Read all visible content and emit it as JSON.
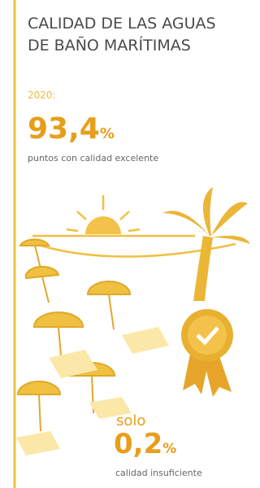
{
  "header": {
    "title_line1": "CALIDAD DE LAS AGUAS",
    "title_line2": "DE BAÑO MARÍTIMAS"
  },
  "stat_main": {
    "year": "2020:",
    "number": "93,4",
    "unit": "%",
    "caption": "puntos con calidad excelente"
  },
  "stat_secondary": {
    "prefix": "solo",
    "number": "0,2",
    "unit": "%",
    "caption": "calidad insuficiente"
  }
}
